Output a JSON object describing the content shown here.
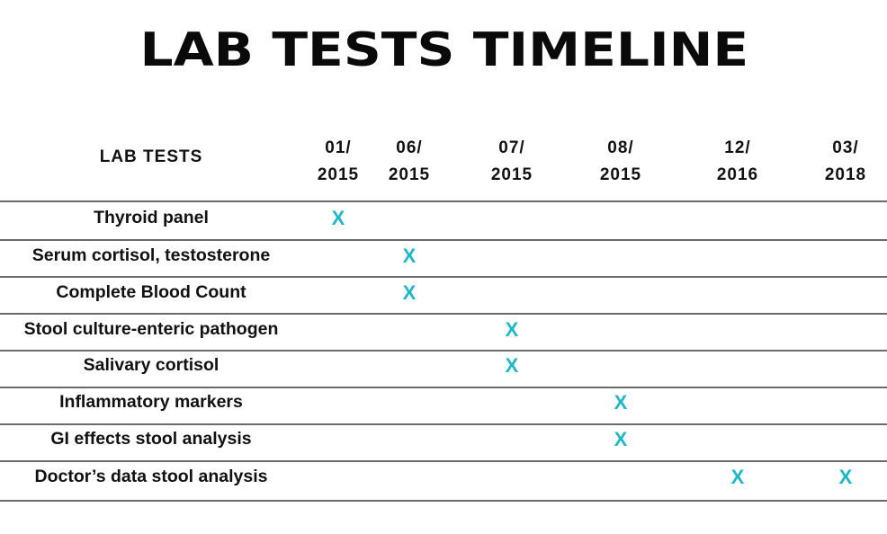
{
  "title": "LAB TESTS TIMELINE",
  "header": {
    "label": "LAB  TESTS",
    "dates": [
      {
        "month": "01/",
        "year": "2015"
      },
      {
        "month": "06/",
        "year": "2015"
      },
      {
        "month": "07/",
        "year": "2015"
      },
      {
        "month": "08/",
        "year": "2015"
      },
      {
        "month": "12/",
        "year": "2016"
      },
      {
        "month": "03/",
        "year": "2018"
      }
    ]
  },
  "mark_symbol": "X",
  "mark_color": "#1fb8c6",
  "rows": [
    {
      "label": "Thyroid panel",
      "marks": [
        0
      ]
    },
    {
      "label": "Serum cortisol, testosterone",
      "marks": [
        1
      ]
    },
    {
      "label": "Complete Blood Count",
      "marks": [
        1
      ]
    },
    {
      "label": "Stool culture-enteric pathogen",
      "marks": [
        2
      ]
    },
    {
      "label": "Salivary cortisol",
      "marks": [
        2
      ]
    },
    {
      "label": "Inflammatory markers",
      "marks": [
        3
      ]
    },
    {
      "label": "GI effects stool analysis",
      "marks": [
        3
      ]
    },
    {
      "label": "Doctor’s data stool analysis",
      "marks": [
        4,
        5
      ]
    }
  ]
}
